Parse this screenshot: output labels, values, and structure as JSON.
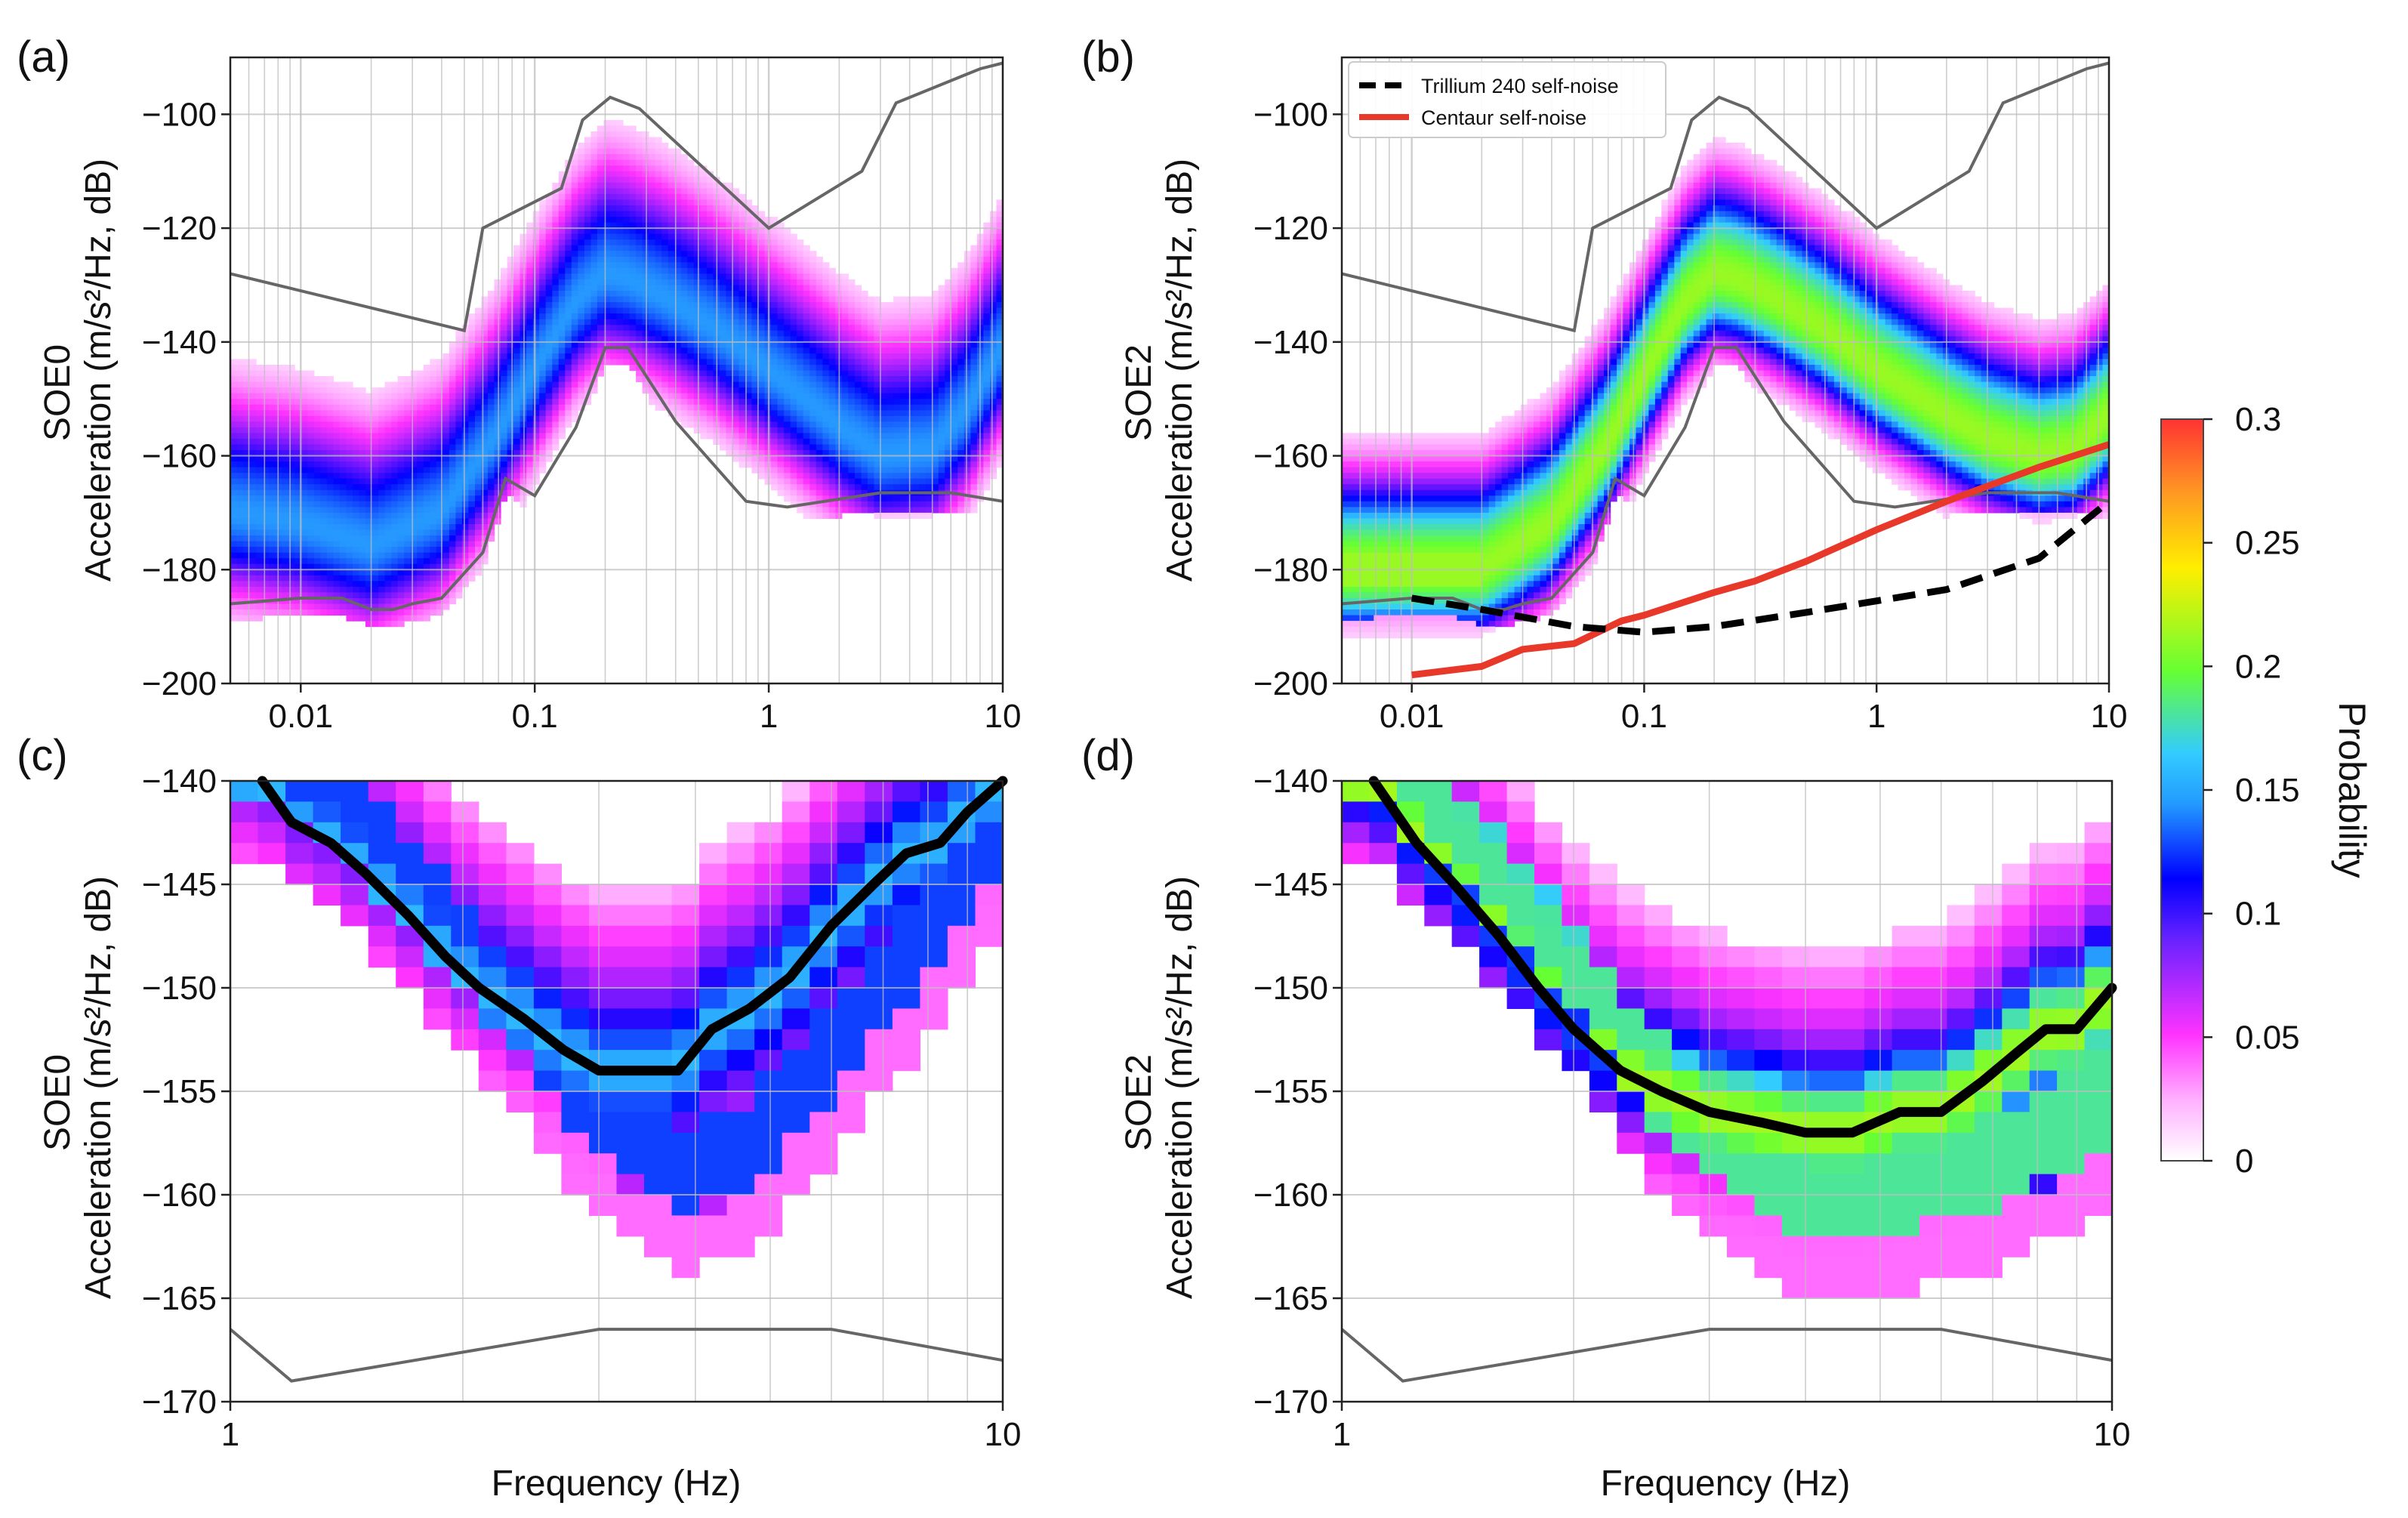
{
  "colors": {
    "nlnm_nhnm_line": "#666666",
    "trillium_line": "#000000",
    "centaur_line": "#e8382a",
    "mode_line": "#000000",
    "grid": "#bdbdbd"
  },
  "colormap": [
    "#ffffff",
    "#ff33ff",
    "#0000ff",
    "#33ccff",
    "#66ff33",
    "#ffee00",
    "#ff3333"
  ],
  "colorbar": {
    "title": "Probability",
    "ticks": [
      "0",
      "0.05",
      "0.1",
      "0.15",
      "0.2",
      "0.25",
      "0.3"
    ],
    "range": [
      0,
      0.3
    ]
  },
  "chart_data": [
    {
      "panel": "(a)",
      "type": "heatmap",
      "ylabel_line1": "SOE0",
      "ylabel_line2": "Acceleration (m/s²/Hz, dB)",
      "xscale": "log",
      "xlim": [
        0.005,
        10
      ],
      "ylim": [
        -200,
        -90
      ],
      "xticklabels": [
        "0.01",
        "0.1",
        "1",
        "10"
      ],
      "xticks": [
        0.01,
        0.1,
        1,
        10
      ],
      "yticklabels": [
        "−100",
        "−120",
        "−140",
        "−160",
        "−180",
        "−200"
      ],
      "yticks": [
        -100,
        -120,
        -140,
        -160,
        -180,
        -200
      ],
      "grid": true,
      "nhnm": {
        "x": [
          0.005,
          0.05,
          0.06,
          0.13,
          0.16,
          0.21,
          0.28,
          1.0,
          2.5,
          3.5,
          8.0,
          10
        ],
        "y": [
          -128,
          -138,
          -120,
          -113,
          -101,
          -97,
          -99,
          -120,
          -110,
          -98,
          -92,
          -91
        ]
      },
      "nlnm": {
        "x": [
          0.005,
          0.01,
          0.015,
          0.02,
          0.025,
          0.03,
          0.04,
          0.06,
          0.075,
          0.1,
          0.15,
          0.2,
          0.25,
          0.4,
          0.8,
          1.2,
          2.5,
          3.0,
          6.0,
          10
        ],
        "y": [
          -186,
          -185,
          -185,
          -187,
          -187,
          -186,
          -185,
          -177,
          -164,
          -167,
          -155,
          -141,
          -141,
          -154,
          -168,
          -169,
          -167,
          -166.5,
          -166.5,
          -168
        ]
      },
      "mode": {
        "x": [
          0.005,
          0.01,
          0.02,
          0.04,
          0.07,
          0.1,
          0.15,
          0.2,
          0.25,
          0.35,
          0.6,
          1,
          2,
          3,
          5,
          7,
          10
        ],
        "y": [
          -170,
          -172,
          -176,
          -170,
          -156,
          -145,
          -133,
          -128,
          -129,
          -132,
          -138,
          -145,
          -155,
          -160,
          -159,
          -152,
          -141
        ]
      },
      "spread": 10,
      "peak_probability": 0.1
    },
    {
      "panel": "(b)",
      "type": "heatmap",
      "ylabel_line1": "SOE2",
      "ylabel_line2": "Acceleration (m/s²/Hz, dB)",
      "xscale": "log",
      "xlim": [
        0.005,
        10
      ],
      "ylim": [
        -200,
        -90
      ],
      "xticklabels": [
        "0.01",
        "0.1",
        "1",
        "10"
      ],
      "xticks": [
        0.01,
        0.1,
        1,
        10
      ],
      "yticklabels": [
        "−100",
        "−120",
        "−140",
        "−160",
        "−180",
        "−200"
      ],
      "yticks": [
        -100,
        -120,
        -140,
        -160,
        -180,
        -200
      ],
      "grid": true,
      "legend_position": "top-left",
      "legend": [
        {
          "label": "Trillium 240 self-noise",
          "style": "dashed",
          "color": "#000000"
        },
        {
          "label": "Centaur self-noise",
          "style": "solid",
          "color": "#e8382a"
        }
      ],
      "nhnm": {
        "x": [
          0.005,
          0.05,
          0.06,
          0.13,
          0.16,
          0.21,
          0.28,
          1.0,
          2.5,
          3.5,
          8.0,
          10
        ],
        "y": [
          -128,
          -138,
          -120,
          -113,
          -101,
          -97,
          -99,
          -120,
          -110,
          -98,
          -92,
          -91
        ]
      },
      "nlnm": {
        "x": [
          0.005,
          0.01,
          0.015,
          0.02,
          0.025,
          0.03,
          0.04,
          0.06,
          0.075,
          0.1,
          0.15,
          0.2,
          0.25,
          0.4,
          0.8,
          1.2,
          2.5,
          3.0,
          6.0,
          10
        ],
        "y": [
          -186,
          -185,
          -185,
          -187,
          -187,
          -186,
          -185,
          -177,
          -164,
          -167,
          -155,
          -141,
          -141,
          -154,
          -168,
          -169,
          -167,
          -166.5,
          -166.5,
          -168
        ]
      },
      "trillium_self_noise": {
        "x": [
          0.01,
          0.02,
          0.05,
          0.1,
          0.2,
          0.5,
          1,
          2,
          5,
          10
        ],
        "y": [
          -185,
          -187,
          -190,
          -191,
          -190,
          -187.5,
          -185.5,
          -183.5,
          -178,
          -168
        ]
      },
      "centaur_self_noise": {
        "x": [
          0.01,
          0.02,
          0.03,
          0.05,
          0.08,
          0.1,
          0.2,
          0.3,
          0.5,
          1,
          2,
          5,
          10
        ],
        "y": [
          -198.5,
          -197,
          -194,
          -193,
          -189,
          -188,
          -184,
          -182,
          -178.5,
          -173,
          -168,
          -162,
          -158
        ]
      },
      "mode": {
        "x": [
          0.005,
          0.01,
          0.02,
          0.04,
          0.07,
          0.1,
          0.15,
          0.2,
          0.25,
          0.35,
          0.6,
          1,
          2,
          3,
          5,
          7,
          10
        ],
        "y": [
          -180,
          -180,
          -180,
          -172,
          -158,
          -146,
          -133,
          -128,
          -129,
          -132,
          -138,
          -145,
          -153,
          -157,
          -160,
          -159,
          -153
        ]
      },
      "spread": 8,
      "peak_probability": 0.18
    },
    {
      "panel": "(c)",
      "type": "heatmap",
      "ylabel_line1": "SOE0",
      "ylabel_line2": "Acceleration (m/s²/Hz, dB)",
      "xlabel": "Frequency (Hz)",
      "xscale": "log",
      "xlim": [
        1,
        10
      ],
      "ylim": [
        -170,
        -140
      ],
      "xticklabels": [
        "1",
        "10"
      ],
      "xticks": [
        1,
        10
      ],
      "yticklabels": [
        "−140",
        "−145",
        "−150",
        "−155",
        "−160",
        "−165",
        "−170"
      ],
      "yticks": [
        -140,
        -145,
        -150,
        -155,
        -160,
        -165,
        -170
      ],
      "grid": true,
      "nlnm": {
        "x": [
          1,
          1.2,
          2.5,
          3.0,
          6.0,
          10
        ],
        "y": [
          -166.5,
          -169,
          -167,
          -166.5,
          -166.5,
          -168
        ]
      },
      "mode_line": {
        "x": [
          1.1,
          1.2,
          1.35,
          1.5,
          1.7,
          1.9,
          2.1,
          2.4,
          2.7,
          3.0,
          3.5,
          3.8,
          4.2,
          4.7,
          5.3,
          6.0,
          6.8,
          7.5,
          8.3,
          9.0,
          10
        ],
        "y": [
          -140,
          -142,
          -143,
          -144.5,
          -146.5,
          -148.5,
          -150,
          -151.5,
          -153,
          -154,
          -154,
          -154,
          -152,
          -151,
          -149.5,
          -147,
          -145,
          -143.5,
          -143,
          -141.5,
          -140
        ]
      },
      "ridge": {
        "x": [
          1.1,
          1.4,
          1.8,
          2.2,
          2.7,
          3.2,
          3.8,
          4.5,
          5.5,
          7,
          8.5,
          10
        ],
        "y": [
          -139,
          -141.5,
          -146,
          -150,
          -154,
          -157,
          -159,
          -158,
          -155,
          -150,
          -146,
          -142
        ]
      },
      "peak_probability": 0.11
    },
    {
      "panel": "(d)",
      "type": "heatmap",
      "ylabel_line1": "SOE2",
      "ylabel_line2": "Acceleration (m/s²/Hz, dB)",
      "xlabel": "Frequency (Hz)",
      "xscale": "log",
      "xlim": [
        1,
        10
      ],
      "ylim": [
        -170,
        -140
      ],
      "xticklabels": [
        "1",
        "10"
      ],
      "xticks": [
        1,
        10
      ],
      "yticklabels": [
        "−140",
        "−145",
        "−150",
        "−155",
        "−160",
        "−165",
        "−170"
      ],
      "yticks": [
        -140,
        -145,
        -150,
        -155,
        -160,
        -165,
        -170
      ],
      "grid": true,
      "nlnm": {
        "x": [
          1,
          1.2,
          2.5,
          3.0,
          6.0,
          10
        ],
        "y": [
          -166.5,
          -169,
          -167,
          -166.5,
          -166.5,
          -168
        ]
      },
      "mode_line": {
        "x": [
          1.1,
          1.25,
          1.4,
          1.6,
          1.8,
          2.0,
          2.3,
          2.6,
          3.0,
          3.5,
          4.0,
          4.6,
          5.3,
          6.0,
          6.8,
          7.6,
          8.2,
          9.0,
          10
        ],
        "y": [
          -140,
          -143,
          -145,
          -147.5,
          -150,
          -152,
          -154,
          -155,
          -156,
          -156.5,
          -157,
          -157,
          -156,
          -156,
          -154.5,
          -153,
          -152,
          -152,
          -150
        ]
      },
      "ridge": {
        "x": [
          1.1,
          1.4,
          1.8,
          2.2,
          2.7,
          3.2,
          3.8,
          4.5,
          5.5,
          7,
          8.5,
          10
        ],
        "y": [
          -139,
          -142.5,
          -147,
          -151.5,
          -155.5,
          -158,
          -159.5,
          -160,
          -159.5,
          -158.5,
          -157,
          -155
        ]
      },
      "peak_probability": 0.18
    }
  ]
}
